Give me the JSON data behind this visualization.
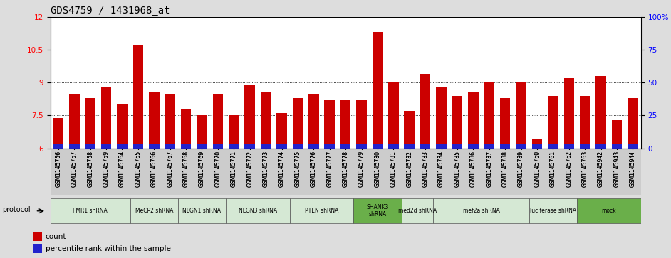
{
  "title": "GDS4759 / 1431968_at",
  "samples": [
    "GSM1145756",
    "GSM1145757",
    "GSM1145758",
    "GSM1145759",
    "GSM1145764",
    "GSM1145765",
    "GSM1145766",
    "GSM1145767",
    "GSM1145768",
    "GSM1145769",
    "GSM1145770",
    "GSM1145771",
    "GSM1145772",
    "GSM1145773",
    "GSM1145774",
    "GSM1145775",
    "GSM1145776",
    "GSM1145777",
    "GSM1145778",
    "GSM1145779",
    "GSM1145780",
    "GSM1145781",
    "GSM1145782",
    "GSM1145783",
    "GSM1145784",
    "GSM1145785",
    "GSM1145786",
    "GSM1145787",
    "GSM1145788",
    "GSM1145789",
    "GSM1145760",
    "GSM1145761",
    "GSM1145762",
    "GSM1145763",
    "GSM1145942",
    "GSM1145943",
    "GSM1145944"
  ],
  "count_values": [
    7.4,
    8.5,
    8.3,
    8.8,
    8.0,
    10.7,
    8.6,
    8.5,
    7.8,
    7.5,
    8.5,
    7.5,
    8.9,
    8.6,
    7.6,
    8.3,
    8.5,
    8.2,
    8.2,
    8.2,
    11.3,
    9.0,
    7.7,
    9.4,
    8.8,
    8.4,
    8.6,
    9.0,
    8.3,
    9.0,
    6.4,
    8.4,
    9.2,
    8.4,
    9.3,
    7.3,
    8.3
  ],
  "percentile_values": [
    6.17,
    6.19,
    6.19,
    6.17,
    6.17,
    6.17,
    6.19,
    6.19,
    6.17,
    6.17,
    6.19,
    6.17,
    6.17,
    6.17,
    6.17,
    6.17,
    6.17,
    6.17,
    6.17,
    6.17,
    6.22,
    6.17,
    6.17,
    6.17,
    6.17,
    6.17,
    6.17,
    6.17,
    6.17,
    6.17,
    6.17,
    6.17,
    6.17,
    6.17,
    6.17,
    6.17,
    6.17
  ],
  "protocols": [
    {
      "label": "FMR1 shRNA",
      "start": 0,
      "end": 5,
      "color": "#d5e8d4"
    },
    {
      "label": "MeCP2 shRNA",
      "start": 5,
      "end": 8,
      "color": "#d5e8d4"
    },
    {
      "label": "NLGN1 shRNA",
      "start": 8,
      "end": 11,
      "color": "#d5e8d4"
    },
    {
      "label": "NLGN3 shRNA",
      "start": 11,
      "end": 15,
      "color": "#d5e8d4"
    },
    {
      "label": "PTEN shRNA",
      "start": 15,
      "end": 19,
      "color": "#d5e8d4"
    },
    {
      "label": "SHANK3\nshRNA",
      "start": 19,
      "end": 22,
      "color": "#6aaf4a"
    },
    {
      "label": "med2d shRNA",
      "start": 22,
      "end": 24,
      "color": "#d5e8d4"
    },
    {
      "label": "mef2a shRNA",
      "start": 24,
      "end": 30,
      "color": "#d5e8d4"
    },
    {
      "label": "luciferase shRNA",
      "start": 30,
      "end": 33,
      "color": "#d5e8d4"
    },
    {
      "label": "mock",
      "start": 33,
      "end": 37,
      "color": "#6aaf4a"
    }
  ],
  "ymin": 6.0,
  "ymax": 12.0,
  "yticks_left": [
    6,
    7.5,
    9,
    10.5,
    12
  ],
  "yticks_left_labels": [
    "6",
    "7.5",
    "9",
    "10.5",
    "12"
  ],
  "right_ytick_pcts": [
    0,
    25,
    50,
    75,
    100
  ],
  "right_ytick_labels": [
    "0",
    "25",
    "50",
    "75",
    "100%"
  ],
  "grid_yticks": [
    7.5,
    9,
    10.5
  ],
  "bar_color": "#cc0000",
  "percentile_color": "#2222cc",
  "plot_bg": "#ffffff",
  "fig_bg": "#dddddd",
  "title_fontsize": 10,
  "tick_fontsize": 7.5,
  "bar_width": 0.65
}
